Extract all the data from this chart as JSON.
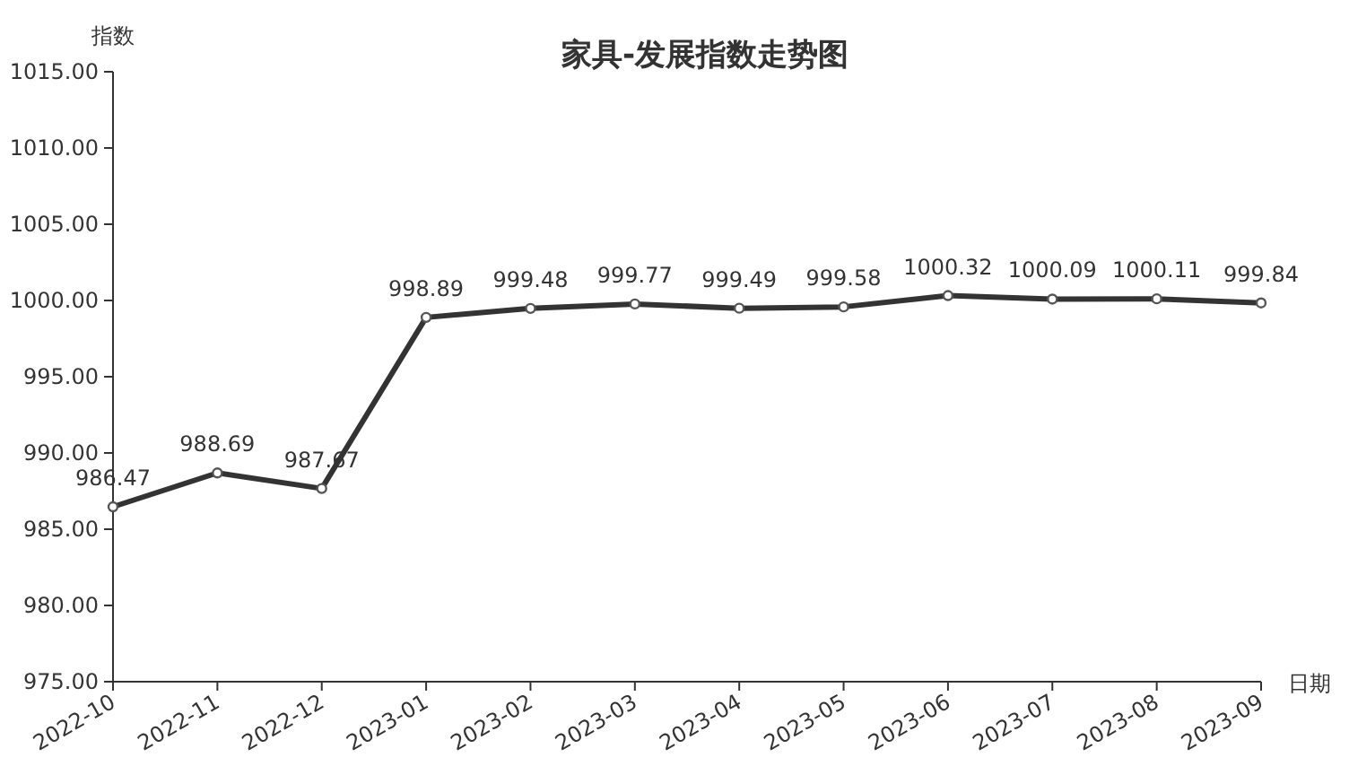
{
  "chart_data": {
    "type": "line",
    "title": "家具-发展指数走势图",
    "xlabel": "日期",
    "ylabel": "指数",
    "categories": [
      "2022-10",
      "2022-11",
      "2022-12",
      "2023-01",
      "2023-02",
      "2023-03",
      "2023-04",
      "2023-05",
      "2023-06",
      "2023-07",
      "2023-08",
      "2023-09"
    ],
    "series": [
      {
        "color": "#333333",
        "values": [
          986.47,
          988.69,
          987.67,
          998.89,
          999.48,
          999.77,
          999.49,
          999.58,
          1000.32,
          1000.09,
          1000.11,
          999.84
        ]
      }
    ],
    "ylim": [
      975,
      1015
    ],
    "yticks": [
      {
        "value": 975,
        "label": "975.00"
      },
      {
        "value": 980,
        "label": "980.00"
      },
      {
        "value": 985,
        "label": "985.00"
      },
      {
        "value": 990,
        "label": "990.00"
      },
      {
        "value": 995,
        "label": "995.00"
      },
      {
        "value": 1000,
        "label": "1000.00"
      },
      {
        "value": 1005,
        "label": "1005.00"
      },
      {
        "value": 1010,
        "label": "1010.00"
      },
      {
        "value": 1015,
        "label": "1015.00"
      }
    ],
    "marker": "circle",
    "data_labels": true
  }
}
